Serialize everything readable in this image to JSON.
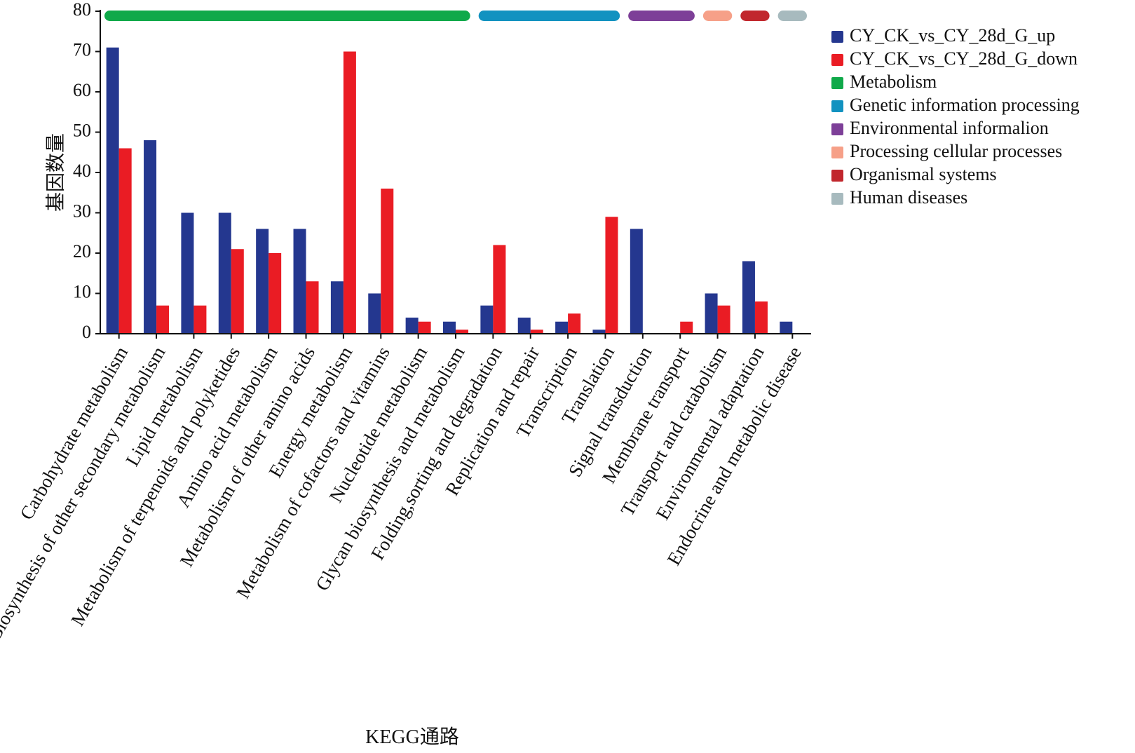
{
  "chart_data": {
    "type": "bar",
    "xlabel": "KEGG通路",
    "ylabel": "基因数量",
    "ylim": [
      0,
      80
    ],
    "yticks": [
      0,
      10,
      20,
      30,
      40,
      50,
      60,
      70,
      80
    ],
    "grid": false,
    "legend_position": "right",
    "categories": [
      "Carbohydrate metabolism",
      "Biosynthesis of other secondary metabolism",
      "Lipid metabolism",
      "Metabolism of terpenoids and polyketides",
      "Amino acid metabolism",
      "Metabolism of other amino acids",
      "Energy metabolism",
      "Metabolism of cofactors and vitamins",
      "Nucleotide metabolism",
      "Glycan biosynthesis and metabolism",
      "Folding,sorting and degradation",
      "Replication and repair",
      "Transcription",
      "Translation",
      "Signal transduction",
      "Membrane transport",
      "Transport and catabolism",
      "Environmental adaptation",
      "Endocrine and metabolic disease"
    ],
    "series": [
      {
        "name": "CY_CK_vs_CY_28d_G_up",
        "color": "#24378f",
        "values": [
          71,
          48,
          30,
          30,
          26,
          26,
          13,
          10,
          4,
          3,
          7,
          4,
          3,
          1,
          26,
          0,
          10,
          18,
          3
        ]
      },
      {
        "name": "CY_CK_vs_CY_28d_G_down",
        "color": "#ea1c24",
        "values": [
          46,
          7,
          7,
          21,
          20,
          13,
          70,
          36,
          3,
          1,
          22,
          1,
          5,
          29,
          0,
          3,
          7,
          8,
          0
        ]
      }
    ],
    "groups": [
      {
        "name": "Metabolism",
        "color": "#10a94a",
        "start": 0,
        "end": 9
      },
      {
        "name": "Genetic information processing",
        "color": "#1292c0",
        "start": 10,
        "end": 13
      },
      {
        "name": "Environmental informalion",
        "color": "#7d3f98",
        "start": 14,
        "end": 15
      },
      {
        "name": "Processing cellular processes",
        "color": "#f6a088",
        "start": 16,
        "end": 16
      },
      {
        "name": "Organismal systems",
        "color": "#c1272d",
        "start": 17,
        "end": 17
      },
      {
        "name": "Human diseases",
        "color": "#a7babe",
        "start": 18,
        "end": 18
      }
    ]
  }
}
